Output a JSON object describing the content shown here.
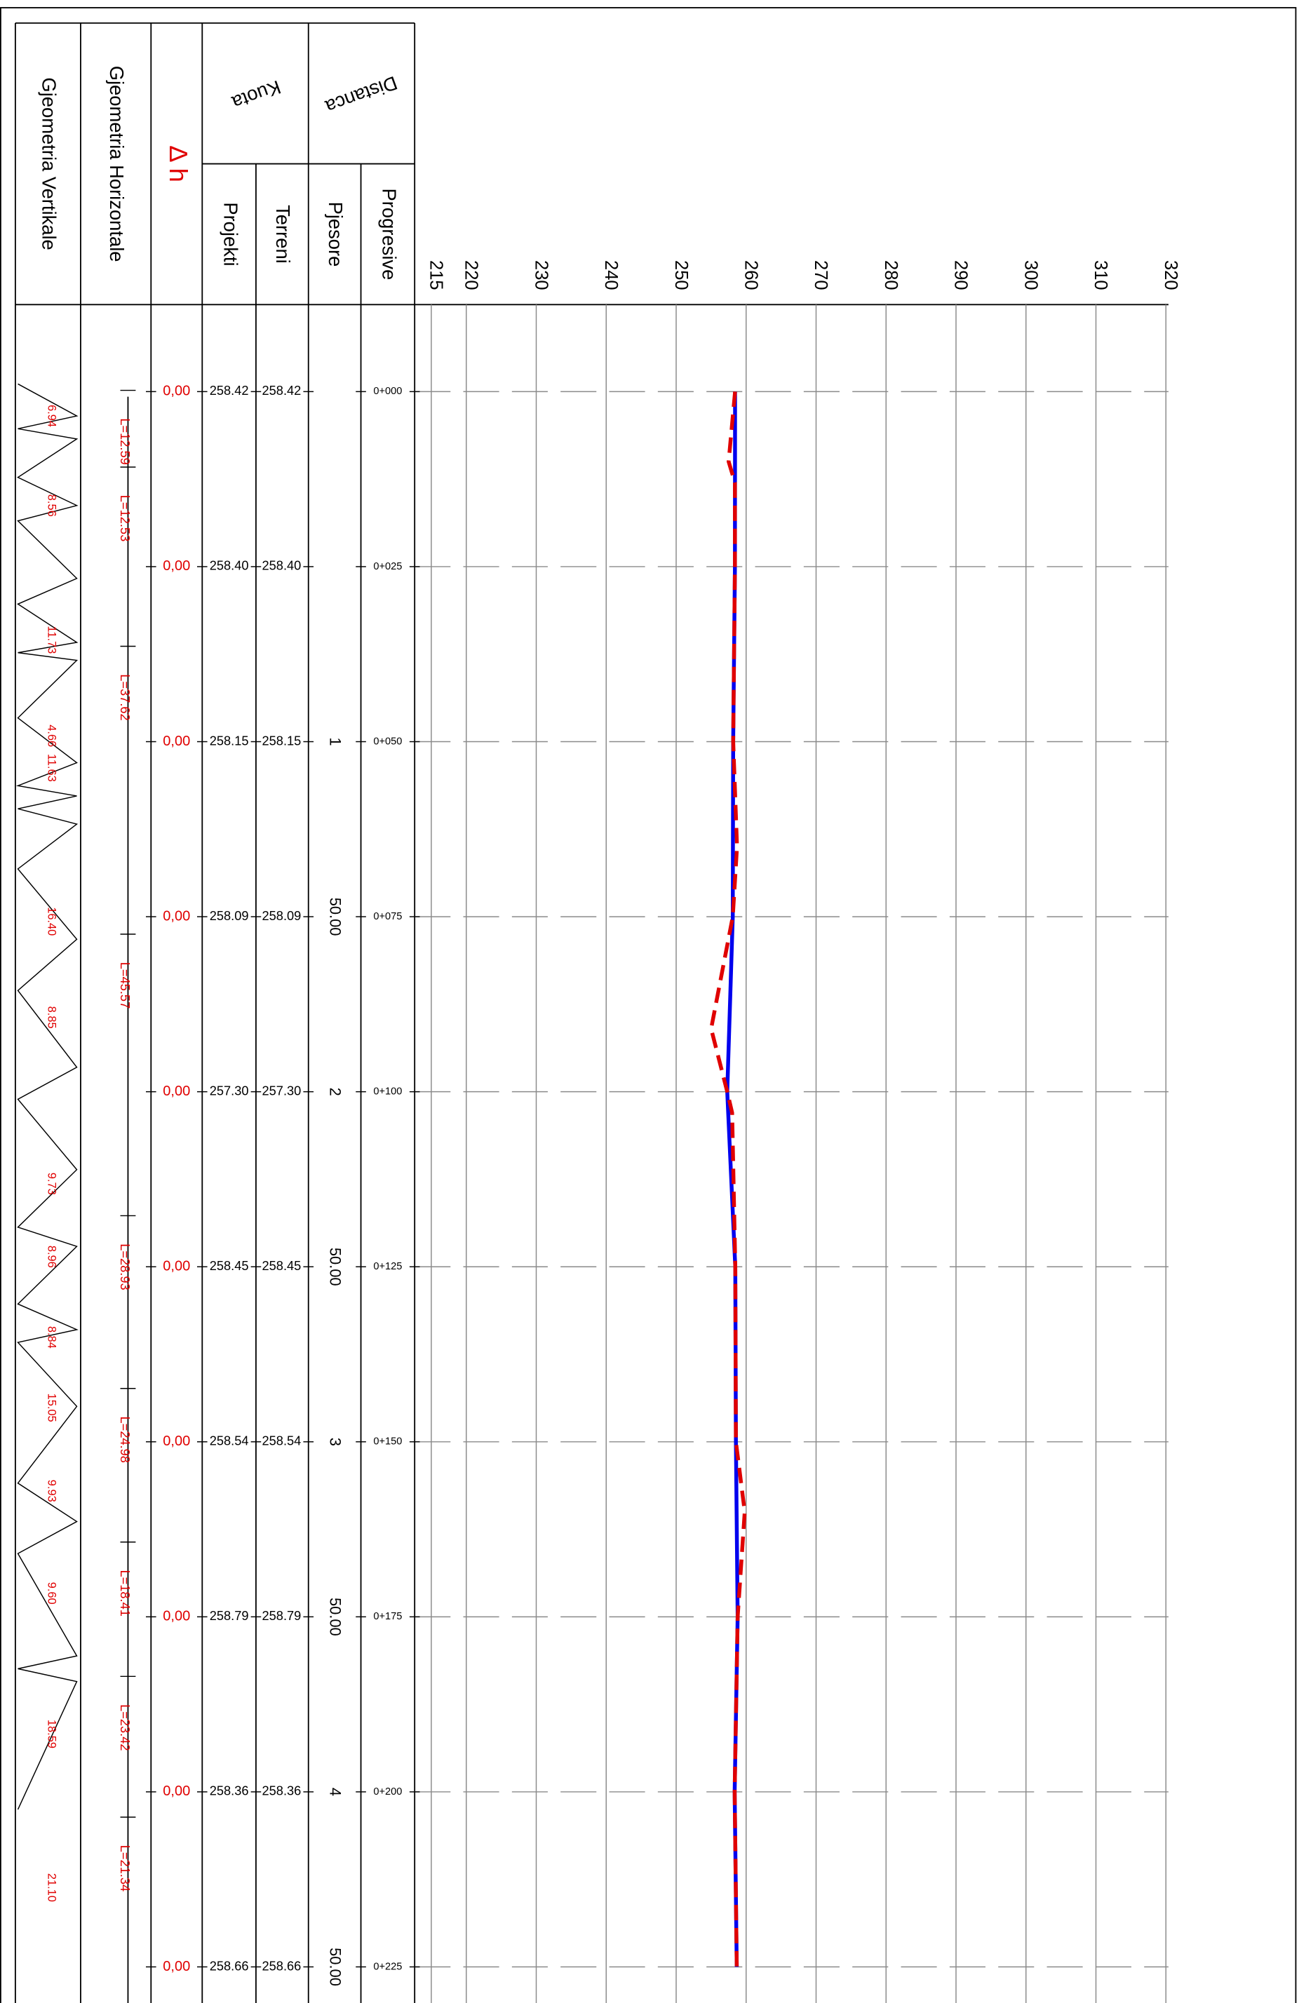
{
  "chart_data": {
    "type": "line",
    "ylim": [
      215,
      320
    ],
    "yticks": [
      215,
      220,
      230,
      240,
      250,
      260,
      270,
      280,
      290,
      300,
      310,
      320
    ],
    "xlim": [
      0,
      225
    ],
    "xticks": [
      {
        "value": 0,
        "label": "0+000"
      },
      {
        "value": 25,
        "label": "0+025"
      },
      {
        "value": 50,
        "label": "0+050"
      },
      {
        "value": 75,
        "label": "0+075"
      },
      {
        "value": 100,
        "label": "0+100"
      },
      {
        "value": 125,
        "label": "0+125"
      },
      {
        "value": 150,
        "label": "0+150"
      },
      {
        "value": 175,
        "label": "0+175"
      },
      {
        "value": 200,
        "label": "0+200"
      },
      {
        "value": 225,
        "label": "0+225"
      }
    ],
    "grid": true,
    "series": [
      {
        "name": "Projekti",
        "color": "#0000ee",
        "style": "solid",
        "x": [
          0,
          25,
          50,
          75,
          100,
          125,
          150,
          175,
          200,
          225
        ],
        "values": [
          258.42,
          258.4,
          258.15,
          258.09,
          257.3,
          258.45,
          258.54,
          258.79,
          258.36,
          258.66
        ],
        "value_labels": [
          "258.42",
          "258.40",
          "258.15",
          "258.09",
          "257.30",
          "258.45",
          "258.54",
          "258.79",
          "258.36",
          "258.66"
        ]
      },
      {
        "name": "Terreni",
        "color": "#e00000",
        "style": "dashed",
        "x": [
          0,
          10,
          13,
          25,
          50,
          65,
          75,
          91,
          100,
          103,
          125,
          150,
          160,
          175,
          200,
          225
        ],
        "values": [
          258.42,
          257.5,
          258.4,
          258.4,
          258.15,
          258.7,
          258.09,
          255.0,
          257.3,
          258.0,
          258.45,
          258.54,
          259.8,
          258.79,
          258.36,
          258.66
        ],
        "value_labels": [
          "258.42",
          "",
          "",
          "258.40",
          "258.15",
          "",
          "258.09",
          "",
          "257.30",
          "",
          "258.45",
          "258.54",
          "",
          "258.79",
          "258.36",
          "258.66"
        ]
      }
    ]
  },
  "header": {
    "geometria_vertikale": "Gjeometria Vertikale",
    "geometria_horizontale": "Gjeometria Horizontale",
    "delta_h": "Δ h",
    "kuota": "Kuota",
    "distanca": "Distanca",
    "pjesore": "Pjesore",
    "progresive": "Progresive"
  },
  "rows": [
    {
      "dh": "0,00"
    },
    {
      "dh": "0,00"
    },
    {
      "dh": "0,00",
      "pjesore": "1"
    },
    {
      "dh": "0,00",
      "pjesore": "50.00"
    },
    {
      "dh": "0,00",
      "pjesore": "2"
    },
    {
      "dh": "0,00",
      "pjesore": "50.00"
    },
    {
      "dh": "0,00",
      "pjesore": "3"
    },
    {
      "dh": "0,00",
      "pjesore": "50.00"
    },
    {
      "dh": "0,00",
      "pjesore": "4"
    },
    {
      "dh": "0,00",
      "pjesore": "50.00"
    }
  ],
  "geometria_horizontale": [
    "L=12.59",
    "L=12.53",
    "L=37.62",
    "L=45.57",
    "L=28.93",
    "L=24.98",
    "L=18.41",
    "L=23.42",
    "L=21.34"
  ],
  "geometria_vertikale": [
    "6.94",
    "8.56",
    "11.73",
    "4.66",
    "11.63",
    "16.40",
    "8.85",
    "9.73",
    "8.96",
    "8.84",
    "15.05",
    "9.93",
    "9.60",
    "18.59",
    "21.10"
  ]
}
